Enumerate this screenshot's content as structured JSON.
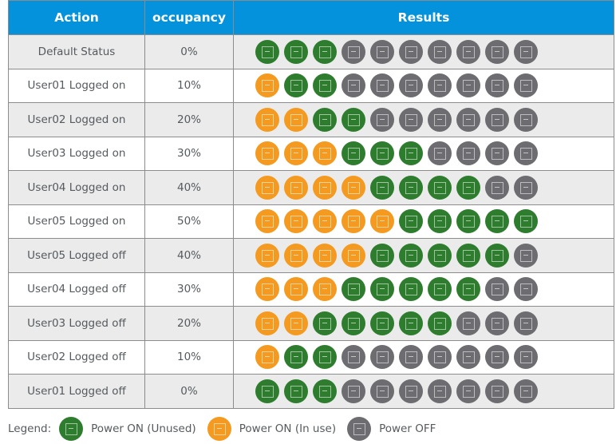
{
  "colors": {
    "header_bg": "#0592dc",
    "unused": "#2e7d2e",
    "in_use": "#f59a21",
    "off": "#6d6c70"
  },
  "header": {
    "action": "Action",
    "occupancy": "occupancy",
    "results": "Results"
  },
  "rows": [
    {
      "action": "Default Status",
      "occupancy": "0%",
      "vms": [
        "unused",
        "unused",
        "unused",
        "off",
        "off",
        "off",
        "off",
        "off",
        "off",
        "off"
      ]
    },
    {
      "action": "User01 Logged on",
      "occupancy": "10%",
      "vms": [
        "in_use",
        "unused",
        "unused",
        "off",
        "off",
        "off",
        "off",
        "off",
        "off",
        "off"
      ]
    },
    {
      "action": "User02 Logged on",
      "occupancy": "20%",
      "vms": [
        "in_use",
        "in_use",
        "unused",
        "unused",
        "off",
        "off",
        "off",
        "off",
        "off",
        "off"
      ]
    },
    {
      "action": "User03 Logged on",
      "occupancy": "30%",
      "vms": [
        "in_use",
        "in_use",
        "in_use",
        "unused",
        "unused",
        "unused",
        "off",
        "off",
        "off",
        "off"
      ]
    },
    {
      "action": "User04 Logged on",
      "occupancy": "40%",
      "vms": [
        "in_use",
        "in_use",
        "in_use",
        "in_use",
        "unused",
        "unused",
        "unused",
        "unused",
        "off",
        "off"
      ]
    },
    {
      "action": "User05 Logged on",
      "occupancy": "50%",
      "vms": [
        "in_use",
        "in_use",
        "in_use",
        "in_use",
        "in_use",
        "unused",
        "unused",
        "unused",
        "unused",
        "unused"
      ]
    },
    {
      "action": "User05 Logged off",
      "occupancy": "40%",
      "vms": [
        "in_use",
        "in_use",
        "in_use",
        "in_use",
        "unused",
        "unused",
        "unused",
        "unused",
        "unused",
        "off"
      ]
    },
    {
      "action": "User04 Logged off",
      "occupancy": "30%",
      "vms": [
        "in_use",
        "in_use",
        "in_use",
        "unused",
        "unused",
        "unused",
        "unused",
        "unused",
        "off",
        "off"
      ]
    },
    {
      "action": "User03 Logged off",
      "occupancy": "20%",
      "vms": [
        "in_use",
        "in_use",
        "unused",
        "unused",
        "unused",
        "unused",
        "unused",
        "off",
        "off",
        "off"
      ]
    },
    {
      "action": "User02 Logged off",
      "occupancy": "10%",
      "vms": [
        "in_use",
        "unused",
        "unused",
        "off",
        "off",
        "off",
        "off",
        "off",
        "off",
        "off"
      ]
    },
    {
      "action": "User01 Logged off",
      "occupancy": "0%",
      "vms": [
        "unused",
        "unused",
        "unused",
        "off",
        "off",
        "off",
        "off",
        "off",
        "off",
        "off"
      ]
    }
  ],
  "legend": {
    "title": "Legend:",
    "items": [
      {
        "state": "unused",
        "label": "Power ON (Unused)",
        "icon": "vm-power-on-unused-icon"
      },
      {
        "state": "in_use",
        "label": "Power ON (In use)",
        "icon": "vm-power-on-in-use-icon"
      },
      {
        "state": "off",
        "label": "Power OFF",
        "icon": "vm-power-off-icon"
      }
    ]
  }
}
